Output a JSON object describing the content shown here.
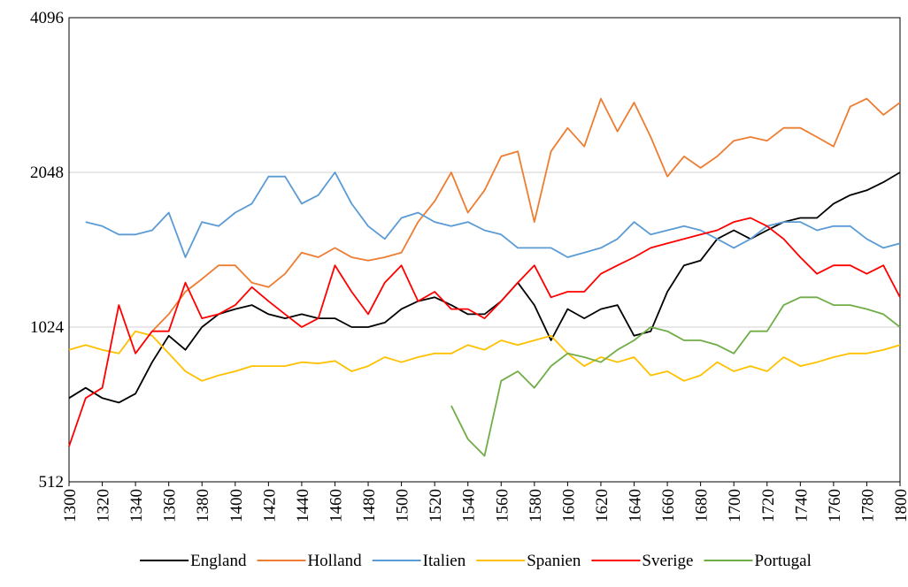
{
  "chart_data": {
    "type": "line",
    "x": [
      1300,
      1310,
      1320,
      1330,
      1340,
      1350,
      1360,
      1370,
      1380,
      1390,
      1400,
      1410,
      1420,
      1430,
      1440,
      1450,
      1460,
      1470,
      1480,
      1490,
      1500,
      1510,
      1520,
      1530,
      1540,
      1550,
      1560,
      1570,
      1580,
      1590,
      1600,
      1610,
      1620,
      1630,
      1640,
      1650,
      1660,
      1670,
      1680,
      1690,
      1700,
      1710,
      1720,
      1730,
      1740,
      1750,
      1760,
      1770,
      1780,
      1790,
      1800
    ],
    "series": [
      {
        "name": "England",
        "color": "#000000",
        "values": [
          745,
          780,
          745,
          730,
          760,
          875,
          985,
          925,
          1024,
          1085,
          1110,
          1130,
          1085,
          1065,
          1085,
          1065,
          1065,
          1024,
          1024,
          1045,
          1110,
          1150,
          1170,
          1130,
          1085,
          1085,
          1150,
          1250,
          1130,
          965,
          1110,
          1065,
          1110,
          1130,
          985,
          1005,
          1200,
          1350,
          1380,
          1520,
          1580,
          1520,
          1580,
          1640,
          1670,
          1670,
          1780,
          1850,
          1890,
          1960,
          2048
        ]
      },
      {
        "name": "Holland",
        "color": "#ed7d31",
        "values": [
          null,
          null,
          null,
          null,
          null,
          1005,
          1085,
          1200,
          1270,
          1350,
          1350,
          1250,
          1225,
          1300,
          1430,
          1400,
          1460,
          1400,
          1380,
          1400,
          1430,
          1640,
          1800,
          2048,
          1710,
          1890,
          2200,
          2250,
          1640,
          2250,
          2500,
          2300,
          2850,
          2460,
          2800,
          2400,
          2010,
          2200,
          2090,
          2200,
          2360,
          2400,
          2360,
          2500,
          2500,
          2400,
          2300,
          2750,
          2850,
          2650,
          2800
        ]
      },
      {
        "name": "Italien",
        "color": "#5b9bd5",
        "values": [
          null,
          1640,
          1610,
          1550,
          1550,
          1580,
          1710,
          1400,
          1640,
          1610,
          1710,
          1780,
          2010,
          2010,
          1780,
          1850,
          2048,
          1780,
          1610,
          1520,
          1670,
          1710,
          1640,
          1610,
          1640,
          1580,
          1550,
          1460,
          1460,
          1460,
          1400,
          1430,
          1460,
          1520,
          1640,
          1550,
          1580,
          1610,
          1580,
          1520,
          1460,
          1520,
          1610,
          1640,
          1640,
          1580,
          1610,
          1610,
          1520,
          1460,
          1490
        ]
      },
      {
        "name": "Spanien",
        "color": "#ffc000",
        "values": [
          925,
          945,
          925,
          910,
          1005,
          985,
          910,
          840,
          805,
          825,
          840,
          860,
          860,
          860,
          875,
          870,
          880,
          840,
          860,
          895,
          875,
          895,
          910,
          910,
          945,
          925,
          965,
          945,
          965,
          985,
          910,
          860,
          895,
          875,
          895,
          825,
          840,
          805,
          825,
          875,
          840,
          860,
          840,
          895,
          860,
          875,
          895,
          910,
          910,
          925,
          945
        ]
      },
      {
        "name": "Sverige",
        "color": "#ff0000",
        "values": [
          600,
          745,
          780,
          1130,
          910,
          1005,
          1005,
          1250,
          1065,
          1085,
          1130,
          1225,
          1150,
          1085,
          1024,
          1065,
          1350,
          1200,
          1085,
          1250,
          1350,
          1150,
          1200,
          1110,
          1110,
          1065,
          1150,
          1250,
          1350,
          1170,
          1200,
          1200,
          1300,
          1350,
          1400,
          1460,
          1490,
          1520,
          1550,
          1580,
          1640,
          1670,
          1610,
          1520,
          1400,
          1300,
          1350,
          1350,
          1300,
          1350,
          1170
        ]
      },
      {
        "name": "Portugal",
        "color": "#70ad47",
        "values": [
          null,
          null,
          null,
          null,
          null,
          null,
          null,
          null,
          null,
          null,
          null,
          null,
          null,
          null,
          null,
          null,
          null,
          null,
          null,
          null,
          null,
          null,
          null,
          720,
          620,
          575,
          805,
          840,
          780,
          860,
          910,
          895,
          875,
          925,
          965,
          1024,
          1005,
          965,
          965,
          945,
          910,
          1005,
          1005,
          1130,
          1170,
          1170,
          1130,
          1130,
          1110,
          1085,
          1024
        ]
      }
    ],
    "xlim": [
      1300,
      1800
    ],
    "xticks": [
      1300,
      1320,
      1340,
      1360,
      1380,
      1400,
      1420,
      1440,
      1460,
      1480,
      1500,
      1520,
      1540,
      1560,
      1580,
      1600,
      1620,
      1640,
      1660,
      1680,
      1700,
      1720,
      1740,
      1760,
      1780,
      1800
    ],
    "ylim": [
      512,
      4096
    ],
    "yticks": [
      512,
      1024,
      2048,
      4096
    ],
    "log_base": 2,
    "grid": true,
    "legend": "bottom"
  }
}
